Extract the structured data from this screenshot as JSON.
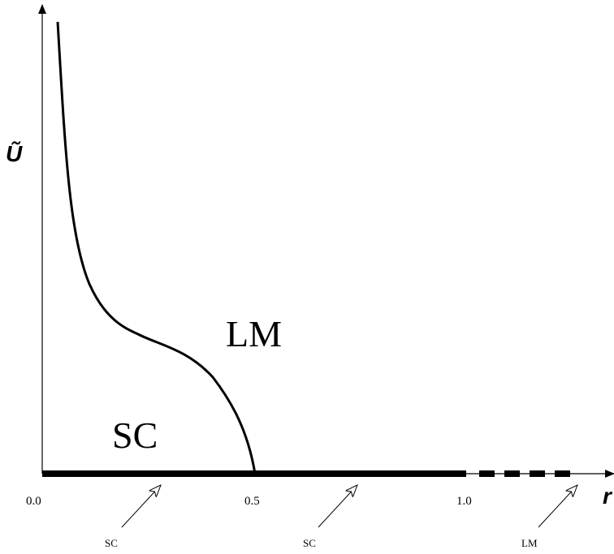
{
  "axes": {
    "x_label": "r",
    "y_label": "Ũ",
    "x_ticks": [
      "0.0",
      "0.5",
      "1.0"
    ]
  },
  "regions": {
    "lower_left": "SC",
    "upper_right": "LM"
  },
  "baseline_labels": {
    "segment_1": "SC",
    "segment_2": "SC",
    "segment_3": "LM"
  },
  "colors": {
    "ink": "#000000",
    "background": "#ffffff"
  }
}
